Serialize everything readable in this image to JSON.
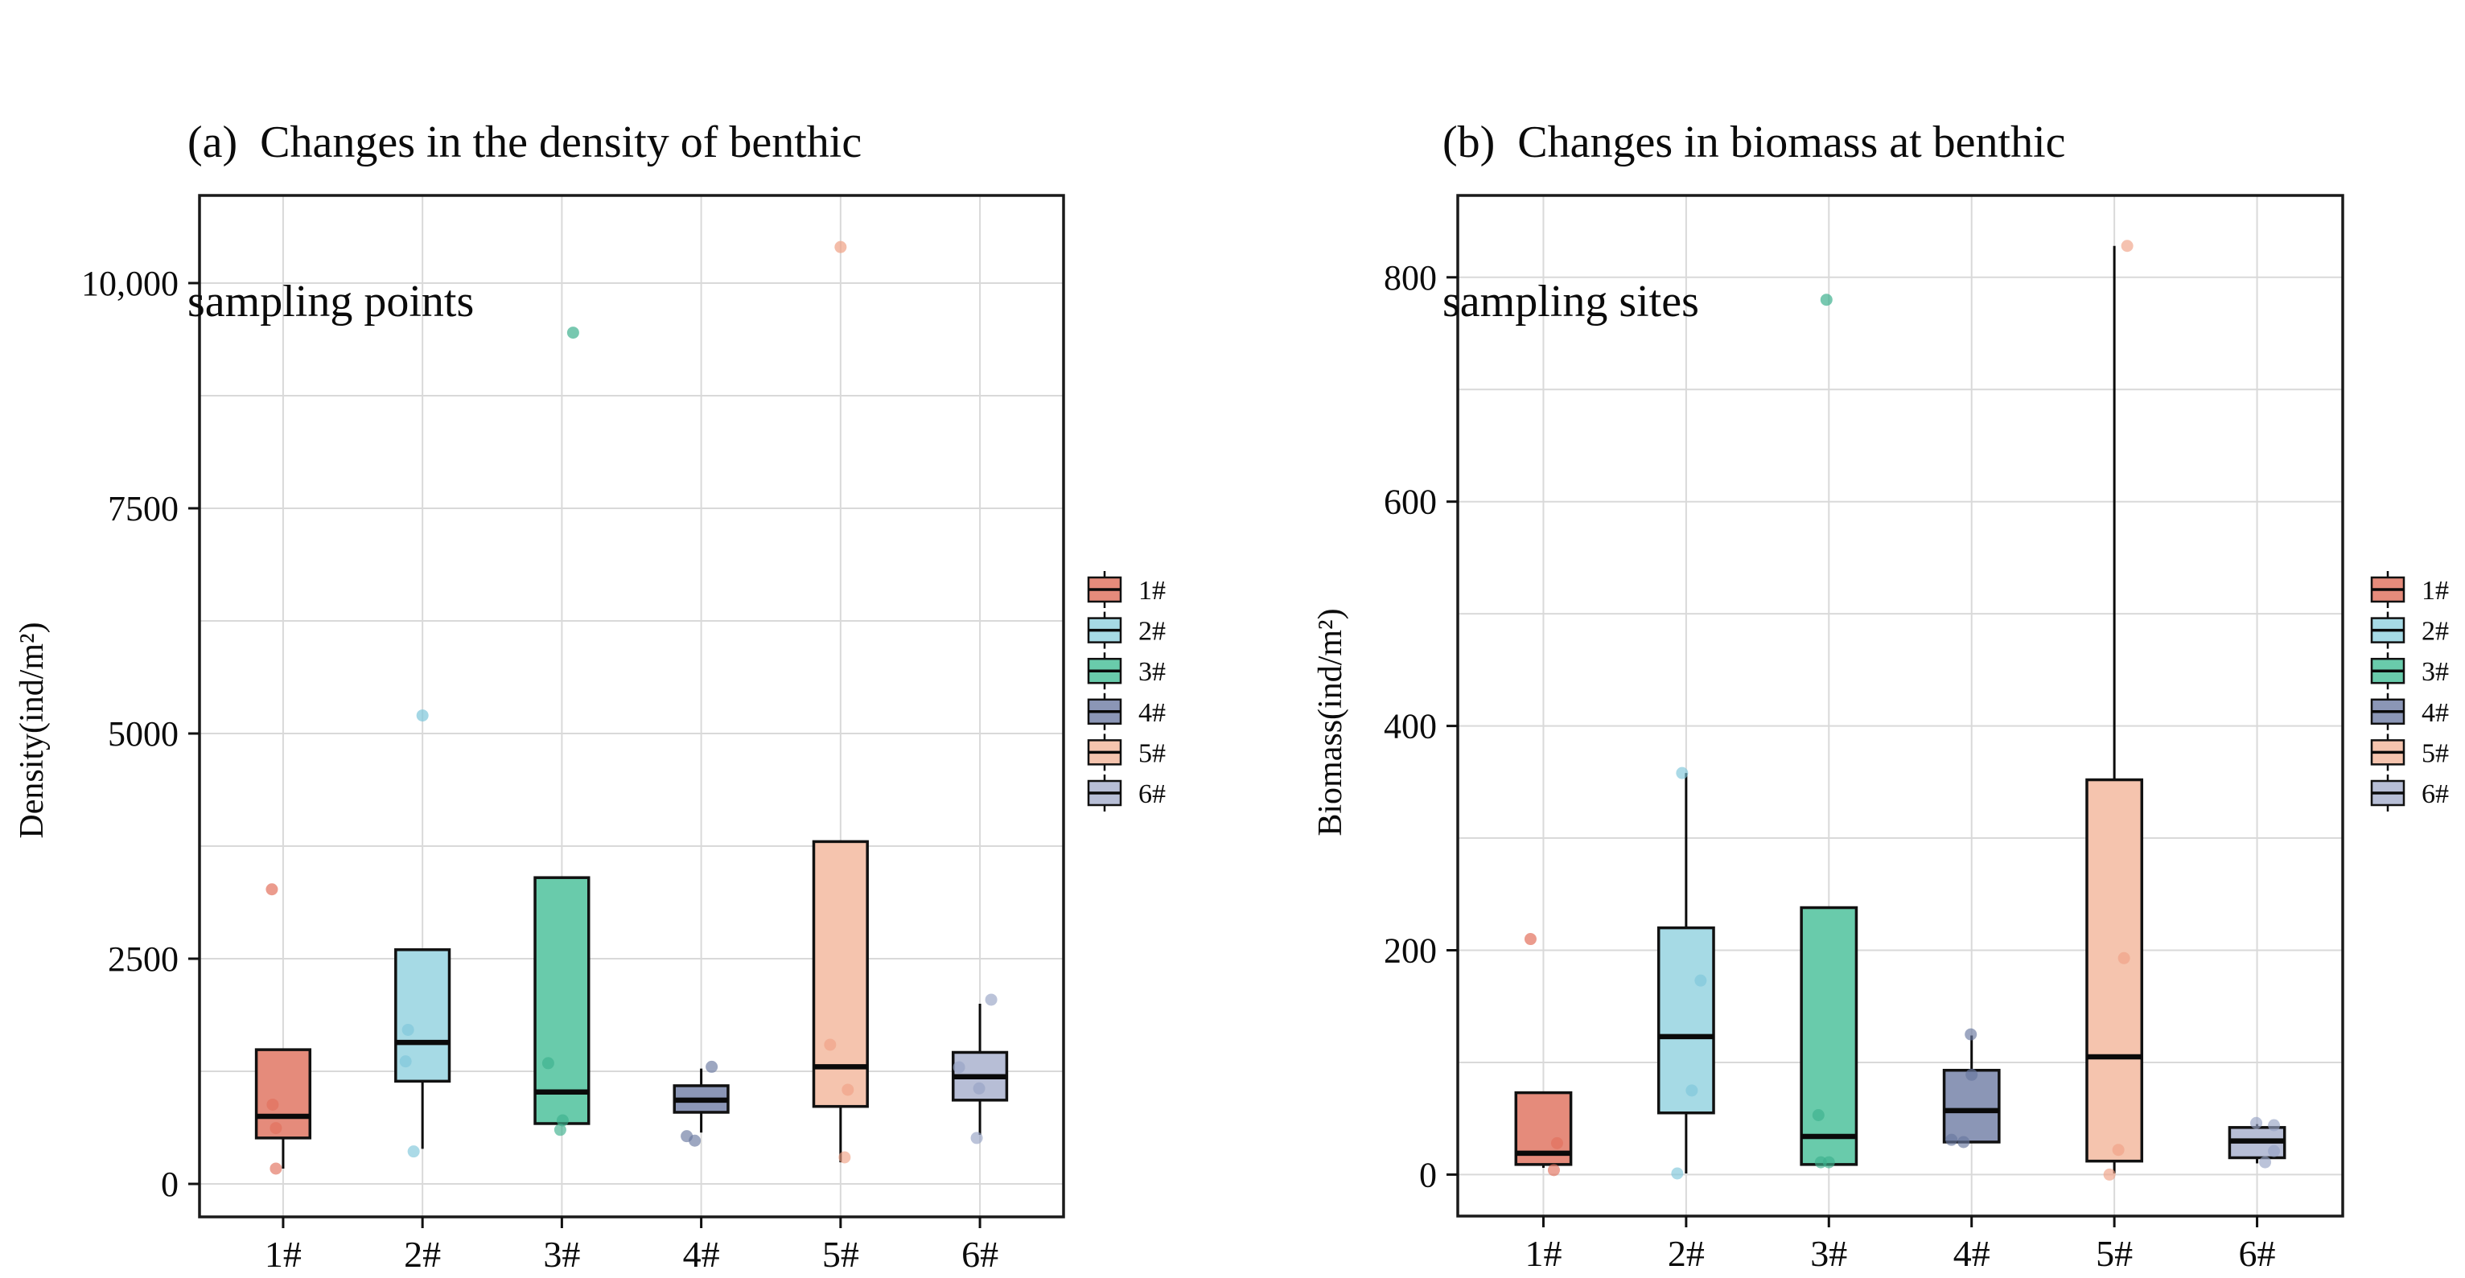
{
  "page": {
    "background": "#ffffff"
  },
  "titles": {
    "a_line1": "(a)  Changes in the density of benthic",
    "a_line2": "sampling points",
    "b_line1": "(b)  Changes in biomass at benthic",
    "b_line2": "sampling sites"
  },
  "colors": {
    "fills": [
      "#E58B7B",
      "#A6DAE5",
      "#69CBAB",
      "#8B96B6",
      "#F5C4AE",
      "#B7BED6"
    ],
    "dots": [
      "#E2705C",
      "#7EC6DA",
      "#3EB18E",
      "#68789F",
      "#EFA185",
      "#97A3C4"
    ],
    "gridline": "#D9D9D9",
    "panel_border": "#1A1A1A",
    "box_stroke": "#111111"
  },
  "chart_data": [
    {
      "type": "box",
      "title": "(a) Changes in the density of benthic sampling points",
      "ylabel": "Density(ind/m²)",
      "xlabel": "",
      "categories": [
        "1#",
        "2#",
        "3#",
        "4#",
        "5#",
        "6#"
      ],
      "ylim": [
        -366,
        10973
      ],
      "grid": true,
      "legend_position": "right",
      "yticks": [
        {
          "v": 0,
          "label": "0"
        },
        {
          "v": 2500,
          "label": "2500"
        },
        {
          "v": 5000,
          "label": "5000"
        },
        {
          "v": 7500,
          "label": "7500"
        },
        {
          "v": 10000,
          "label": "10,000"
        }
      ],
      "minor_ticks": [
        1250,
        3750,
        6250,
        8750
      ],
      "series": [
        {
          "name": "1#",
          "fill": "#E58B7B",
          "dot": "#E2705C",
          "whisker_low": 170,
          "q1": 510,
          "median": 750,
          "q3": 1490,
          "whisker_high": null,
          "outliers": [
            {
              "v": 3270,
              "dx": -14
            }
          ],
          "points": [
            {
              "v": 880,
              "dx": -13
            },
            {
              "v": 620,
              "dx": -9
            },
            {
              "v": 170,
              "dx": -9
            }
          ]
        },
        {
          "name": "2#",
          "fill": "#A6DAE5",
          "dot": "#7EC6DA",
          "whisker_low": 390,
          "q1": 1140,
          "median": 1570,
          "q3": 2600,
          "whisker_high": null,
          "outliers": [
            {
              "v": 5200,
              "dx": 0
            }
          ],
          "points": [
            {
              "v": 1710,
              "dx": -18
            },
            {
              "v": 1360,
              "dx": -21
            },
            {
              "v": 360,
              "dx": -11
            }
          ]
        },
        {
          "name": "3#",
          "fill": "#69CBAB",
          "dot": "#3EB18E",
          "whisker_low": null,
          "q1": 670,
          "median": 1020,
          "q3": 3400,
          "whisker_high": null,
          "outliers": [
            {
              "v": 9450,
              "dx": 14
            }
          ],
          "points": [
            {
              "v": 1340,
              "dx": -17
            },
            {
              "v": 705,
              "dx": 1
            },
            {
              "v": 600,
              "dx": -2
            }
          ]
        },
        {
          "name": "4#",
          "fill": "#8B96B6",
          "dot": "#68789F",
          "whisker_low": 570,
          "q1": 795,
          "median": 930,
          "q3": 1090,
          "whisker_high": 1280,
          "outliers": [],
          "points": [
            {
              "v": 1300,
              "dx": 13
            },
            {
              "v": 530,
              "dx": -18
            },
            {
              "v": 480,
              "dx": -8
            }
          ]
        },
        {
          "name": "5#",
          "fill": "#F5C4AE",
          "dot": "#EFA185",
          "whisker_low": 240,
          "q1": 860,
          "median": 1300,
          "q3": 3800,
          "whisker_high": null,
          "outliers": [
            {
              "v": 10400,
              "dx": 0
            }
          ],
          "points": [
            {
              "v": 1545,
              "dx": -13
            },
            {
              "v": 1045,
              "dx": 9
            },
            {
              "v": 295,
              "dx": 5
            }
          ]
        },
        {
          "name": "6#",
          "fill": "#B7BED6",
          "dot": "#97A3C4",
          "whisker_low": 545,
          "q1": 930,
          "median": 1190,
          "q3": 1460,
          "whisker_high": 2000,
          "outliers": [],
          "points": [
            {
              "v": 2045,
              "dx": 14
            },
            {
              "v": 1295,
              "dx": -26
            },
            {
              "v": 1060,
              "dx": -1
            },
            {
              "v": 510,
              "dx": -4
            }
          ]
        }
      ]
    },
    {
      "type": "box",
      "title": "(b) Changes in biomass at benthic sampling sites",
      "ylabel": "Biomass(ind/m²)",
      "xlabel": "",
      "categories": [
        "1#",
        "2#",
        "3#",
        "4#",
        "5#",
        "6#"
      ],
      "ylim": [
        -37,
        873
      ],
      "grid": true,
      "legend_position": "right",
      "yticks": [
        {
          "v": 0,
          "label": "0"
        },
        {
          "v": 200,
          "label": "200"
        },
        {
          "v": 400,
          "label": "400"
        },
        {
          "v": 600,
          "label": "600"
        },
        {
          "v": 800,
          "label": "800"
        }
      ],
      "minor_ticks": [
        100,
        300,
        500,
        700
      ],
      "series": [
        {
          "name": "1#",
          "fill": "#E58B7B",
          "dot": "#E2705C",
          "whisker_low": 6,
          "q1": 9,
          "median": 19,
          "q3": 73,
          "whisker_high": null,
          "outliers": [
            {
              "v": 210,
              "dx": -16
            }
          ],
          "points": [
            {
              "v": 28,
              "dx": 17
            },
            {
              "v": 4,
              "dx": 13
            }
          ]
        },
        {
          "name": "2#",
          "fill": "#A6DAE5",
          "dot": "#7EC6DA",
          "whisker_low": 1,
          "q1": 55,
          "median": 123,
          "q3": 220,
          "whisker_high": 358,
          "outliers": [],
          "points": [
            {
              "v": 358,
              "dx": -5
            },
            {
              "v": 173,
              "dx": 18
            },
            {
              "v": 75,
              "dx": 7
            },
            {
              "v": 1,
              "dx": -11
            }
          ]
        },
        {
          "name": "3#",
          "fill": "#69CBAB",
          "dot": "#3EB18E",
          "whisker_low": null,
          "q1": 9,
          "median": 34,
          "q3": 238,
          "whisker_high": null,
          "outliers": [
            {
              "v": 780,
              "dx": -3
            }
          ],
          "points": [
            {
              "v": 53,
              "dx": -13
            },
            {
              "v": 11,
              "dx": -10
            },
            {
              "v": 11,
              "dx": 0
            }
          ]
        },
        {
          "name": "4#",
          "fill": "#8B96B6",
          "dot": "#68789F",
          "whisker_low": null,
          "q1": 29,
          "median": 57,
          "q3": 93,
          "whisker_high": 124,
          "outliers": [],
          "points": [
            {
              "v": 125,
              "dx": -1
            },
            {
              "v": 89,
              "dx": 0
            },
            {
              "v": 31,
              "dx": -25
            },
            {
              "v": 29,
              "dx": -10
            }
          ]
        },
        {
          "name": "5#",
          "fill": "#F5C4AE",
          "dot": "#EFA185",
          "whisker_low": 1,
          "q1": 12,
          "median": 105,
          "q3": 352,
          "whisker_high": 828,
          "outliers": [],
          "points": [
            {
              "v": 828,
              "dx": 16
            },
            {
              "v": 193,
              "dx": 12
            },
            {
              "v": 22,
              "dx": 5
            },
            {
              "v": 0,
              "dx": -6
            }
          ]
        },
        {
          "name": "6#",
          "fill": "#B7BED6",
          "dot": "#97A3C4",
          "whisker_low": 10,
          "q1": 15,
          "median": 30,
          "q3": 42,
          "whisker_high": 45,
          "outliers": [],
          "points": [
            {
              "v": 46,
              "dx": -1
            },
            {
              "v": 44,
              "dx": 21
            },
            {
              "v": 21,
              "dx": 21
            },
            {
              "v": 11,
              "dx": 10
            }
          ]
        }
      ]
    }
  ]
}
